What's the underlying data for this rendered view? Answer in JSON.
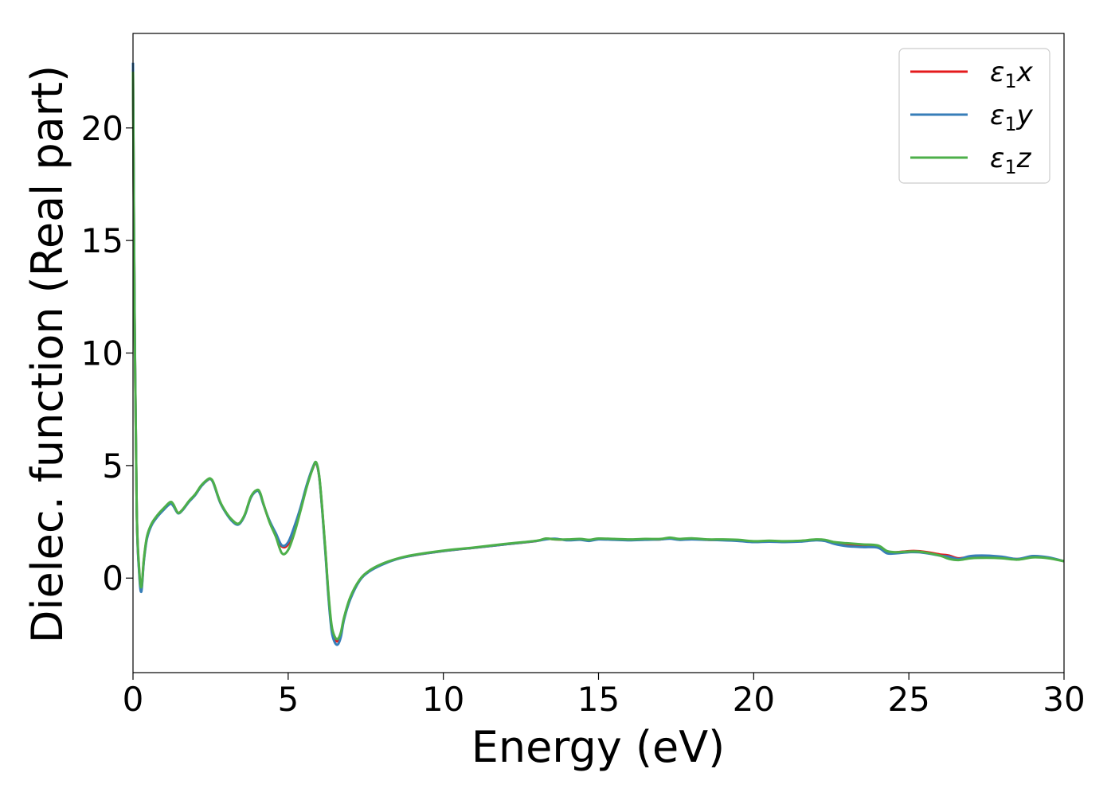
{
  "chart_data": {
    "type": "line",
    "title": "",
    "xlabel": "Energy (eV)",
    "ylabel": "Dielec. function (Real part)",
    "xlim": [
      0,
      30
    ],
    "ylim": [
      -4.2,
      24.2
    ],
    "xticks": [
      0,
      5,
      10,
      15,
      20,
      25,
      30
    ],
    "yticks": [
      0,
      5,
      10,
      15,
      20
    ],
    "grid": false,
    "legend_position": "top-right",
    "series": [
      {
        "name": "ε₁x",
        "legend_base": "ε",
        "legend_sub": "1",
        "legend_suffix": "x",
        "color": "#e41a1c",
        "x": [
          0.0,
          0.05,
          0.12,
          0.2,
          0.27,
          0.35,
          0.45,
          0.6,
          0.8,
          1.0,
          1.2,
          1.3,
          1.45,
          1.6,
          1.8,
          2.0,
          2.2,
          2.4,
          2.5,
          2.6,
          2.8,
          3.0,
          3.2,
          3.4,
          3.6,
          3.8,
          4.0,
          4.1,
          4.2,
          4.4,
          4.6,
          4.8,
          5.0,
          5.2,
          5.4,
          5.6,
          5.8,
          5.9,
          6.0,
          6.1,
          6.2,
          6.3,
          6.4,
          6.5,
          6.6,
          6.7,
          6.8,
          7.0,
          7.3,
          7.6,
          8.0,
          8.5,
          9.0,
          10.0,
          11.0,
          12.0,
          13.0,
          13.3,
          13.6,
          14.0,
          14.4,
          14.7,
          15.0,
          15.5,
          16.0,
          16.5,
          17.0,
          17.3,
          17.6,
          18.0,
          18.5,
          19.0,
          19.5,
          20.0,
          20.5,
          21.0,
          21.5,
          22.0,
          22.3,
          22.6,
          23.0,
          23.5,
          24.0,
          24.3,
          24.6,
          25.0,
          25.3,
          25.6,
          26.0,
          26.3,
          26.6,
          27.0,
          27.5,
          28.0,
          28.5,
          29.0,
          29.5,
          30.0
        ],
        "values": [
          22.6,
          12.0,
          3.0,
          0.3,
          -0.5,
          0.8,
          1.8,
          2.4,
          2.8,
          3.1,
          3.35,
          3.25,
          2.9,
          3.05,
          3.4,
          3.7,
          4.1,
          4.35,
          4.4,
          4.2,
          3.4,
          2.9,
          2.55,
          2.4,
          2.8,
          3.6,
          3.9,
          3.75,
          3.3,
          2.5,
          1.9,
          1.4,
          1.5,
          2.2,
          3.1,
          4.1,
          4.9,
          5.1,
          4.5,
          3.0,
          1.2,
          -0.8,
          -2.2,
          -2.7,
          -2.8,
          -2.5,
          -1.8,
          -0.9,
          -0.1,
          0.3,
          0.6,
          0.85,
          1.0,
          1.2,
          1.35,
          1.5,
          1.65,
          1.75,
          1.72,
          1.7,
          1.72,
          1.68,
          1.75,
          1.72,
          1.7,
          1.72,
          1.72,
          1.78,
          1.72,
          1.75,
          1.7,
          1.7,
          1.68,
          1.62,
          1.65,
          1.62,
          1.65,
          1.7,
          1.68,
          1.58,
          1.5,
          1.45,
          1.4,
          1.15,
          1.15,
          1.2,
          1.2,
          1.15,
          1.05,
          1.0,
          0.88,
          0.95,
          0.95,
          0.92,
          0.85,
          0.95,
          0.9,
          0.75
        ]
      },
      {
        "name": "ε₁y",
        "legend_base": "ε",
        "legend_sub": "1",
        "legend_suffix": "y",
        "color": "#377eb8",
        "x": [
          0.0,
          0.05,
          0.12,
          0.2,
          0.27,
          0.35,
          0.45,
          0.6,
          0.8,
          1.0,
          1.2,
          1.3,
          1.45,
          1.6,
          1.8,
          2.0,
          2.2,
          2.4,
          2.5,
          2.6,
          2.8,
          3.0,
          3.2,
          3.4,
          3.6,
          3.8,
          4.0,
          4.1,
          4.2,
          4.4,
          4.6,
          4.8,
          5.0,
          5.2,
          5.4,
          5.6,
          5.8,
          5.9,
          6.0,
          6.1,
          6.2,
          6.3,
          6.4,
          6.5,
          6.6,
          6.7,
          6.8,
          7.0,
          7.3,
          7.6,
          8.0,
          8.5,
          9.0,
          10.0,
          11.0,
          12.0,
          13.0,
          13.3,
          13.6,
          14.0,
          14.4,
          14.7,
          15.0,
          15.5,
          16.0,
          16.5,
          17.0,
          17.3,
          17.6,
          18.0,
          18.5,
          19.0,
          19.5,
          20.0,
          20.5,
          21.0,
          21.5,
          22.0,
          22.3,
          22.6,
          23.0,
          23.5,
          24.0,
          24.3,
          24.6,
          25.0,
          25.3,
          25.6,
          26.0,
          26.3,
          26.6,
          27.0,
          27.5,
          28.0,
          28.5,
          29.0,
          29.5,
          30.0
        ],
        "values": [
          22.9,
          12.2,
          3.0,
          0.2,
          -0.6,
          0.75,
          1.75,
          2.35,
          2.75,
          3.05,
          3.3,
          3.2,
          2.88,
          3.02,
          3.38,
          3.68,
          4.08,
          4.35,
          4.4,
          4.18,
          3.38,
          2.88,
          2.52,
          2.38,
          2.78,
          3.58,
          3.88,
          3.72,
          3.28,
          2.55,
          2.0,
          1.45,
          1.6,
          2.3,
          3.15,
          4.15,
          4.95,
          5.12,
          4.5,
          2.95,
          1.1,
          -0.9,
          -2.35,
          -2.85,
          -2.95,
          -2.6,
          -1.85,
          -0.95,
          -0.12,
          0.28,
          0.58,
          0.84,
          1.0,
          1.2,
          1.35,
          1.5,
          1.65,
          1.72,
          1.75,
          1.68,
          1.7,
          1.65,
          1.72,
          1.7,
          1.68,
          1.7,
          1.72,
          1.75,
          1.7,
          1.72,
          1.7,
          1.68,
          1.65,
          1.6,
          1.62,
          1.6,
          1.62,
          1.68,
          1.65,
          1.52,
          1.42,
          1.38,
          1.35,
          1.1,
          1.1,
          1.15,
          1.15,
          1.1,
          1.0,
          0.95,
          0.85,
          0.98,
          1.0,
          0.95,
          0.85,
          0.98,
          0.92,
          0.75
        ]
      },
      {
        "name": "ε₁z",
        "legend_base": "ε",
        "legend_sub": "1",
        "legend_suffix": "z",
        "color": "#4daf4a",
        "x": [
          0.0,
          0.05,
          0.12,
          0.2,
          0.27,
          0.35,
          0.45,
          0.6,
          0.8,
          1.0,
          1.2,
          1.3,
          1.45,
          1.6,
          1.8,
          2.0,
          2.2,
          2.4,
          2.5,
          2.6,
          2.8,
          3.0,
          3.2,
          3.4,
          3.6,
          3.8,
          4.0,
          4.1,
          4.2,
          4.4,
          4.6,
          4.8,
          5.0,
          5.2,
          5.4,
          5.6,
          5.8,
          5.9,
          6.0,
          6.1,
          6.2,
          6.3,
          6.4,
          6.5,
          6.6,
          6.7,
          6.8,
          7.0,
          7.3,
          7.6,
          8.0,
          8.5,
          9.0,
          10.0,
          11.0,
          12.0,
          13.0,
          13.3,
          13.6,
          14.0,
          14.4,
          14.7,
          15.0,
          15.5,
          16.0,
          16.5,
          17.0,
          17.3,
          17.6,
          18.0,
          18.5,
          19.0,
          19.5,
          20.0,
          20.5,
          21.0,
          21.5,
          22.0,
          22.3,
          22.6,
          23.0,
          23.5,
          24.0,
          24.3,
          24.6,
          25.0,
          25.3,
          25.6,
          26.0,
          26.3,
          26.6,
          27.0,
          27.5,
          28.0,
          28.5,
          29.0,
          29.5,
          30.0
        ],
        "values": [
          22.5,
          11.8,
          3.1,
          0.4,
          -0.4,
          0.85,
          1.85,
          2.42,
          2.82,
          3.12,
          3.38,
          3.28,
          2.9,
          3.05,
          3.42,
          3.72,
          4.12,
          4.38,
          4.42,
          4.22,
          3.42,
          2.92,
          2.58,
          2.42,
          2.82,
          3.62,
          3.92,
          3.78,
          3.32,
          2.48,
          1.85,
          1.1,
          1.25,
          2.0,
          3.0,
          4.05,
          4.9,
          5.15,
          4.55,
          3.05,
          1.25,
          -0.7,
          -2.1,
          -2.6,
          -2.7,
          -2.4,
          -1.75,
          -0.85,
          -0.08,
          0.32,
          0.62,
          0.86,
          1.02,
          1.22,
          1.36,
          1.52,
          1.66,
          1.76,
          1.72,
          1.72,
          1.74,
          1.7,
          1.76,
          1.74,
          1.72,
          1.74,
          1.74,
          1.8,
          1.74,
          1.77,
          1.72,
          1.72,
          1.7,
          1.64,
          1.66,
          1.64,
          1.66,
          1.72,
          1.7,
          1.6,
          1.55,
          1.5,
          1.45,
          1.2,
          1.15,
          1.18,
          1.18,
          1.12,
          1.0,
          0.85,
          0.8,
          0.88,
          0.9,
          0.88,
          0.82,
          0.92,
          0.88,
          0.75
        ]
      }
    ]
  }
}
